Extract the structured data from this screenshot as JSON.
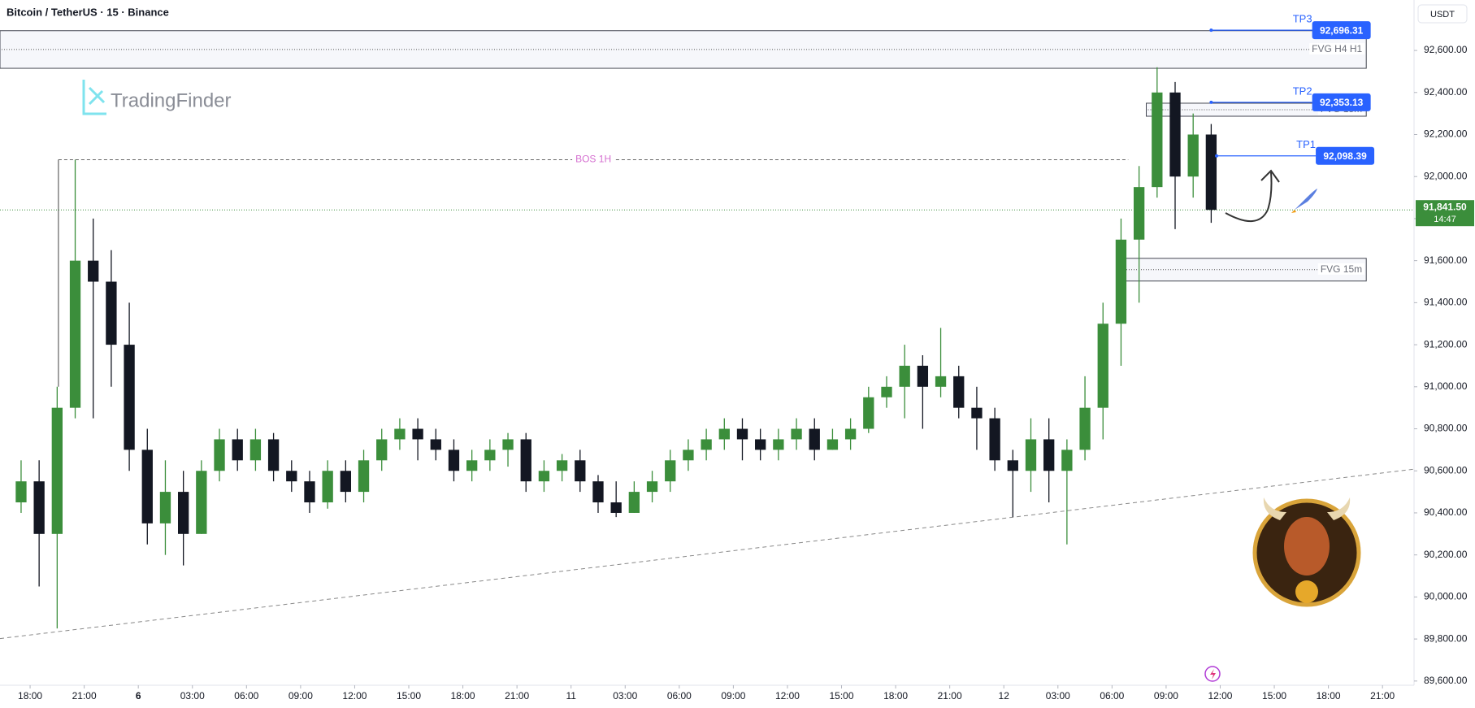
{
  "chart_data": {
    "type": "candlestick",
    "title": "Bitcoin / TetherUS · 15 · Binance",
    "currency": "USDT",
    "watermark": "TradingFinder",
    "up_color": "#3b8e3b",
    "down_color": "#131722",
    "x": [
      -0.5,
      0.5,
      1.5,
      2.5,
      3.5,
      4.5,
      5.5,
      6.5,
      7.5,
      8.5,
      9.5,
      10.5,
      11.5,
      12.5,
      13.5,
      14.5,
      15.5,
      16.5,
      17.5,
      18.5,
      19.5,
      20.5,
      21.5,
      22.5,
      23.5,
      24.5,
      25.5,
      26.5,
      27.5,
      28.5,
      29.5,
      30.5,
      31.5,
      32.5,
      33.5,
      34.5,
      35.5,
      36.5,
      37.5,
      38.5,
      39.5,
      40.5,
      41.5,
      42.5,
      43.5,
      44.5,
      45.5,
      46.5,
      47.5,
      48.5,
      49.5,
      50.5,
      51.5,
      52.5,
      53.5,
      54.5,
      55.5,
      56.5,
      57.5,
      58.5,
      59.5,
      60.5,
      61.5,
      62.5,
      63.5,
      64.5,
      65.5
    ],
    "open": [
      90450,
      90550,
      90300,
      90900,
      91600,
      91500,
      91200,
      90700,
      90350,
      90500,
      90300,
      90600,
      90750,
      90650,
      90750,
      90600,
      90550,
      90450,
      90600,
      90500,
      90650,
      90750,
      90800,
      90750,
      90700,
      90600,
      90650,
      90700,
      90750,
      90550,
      90600,
      90650,
      90550,
      90450,
      90400,
      90500,
      90550,
      90650,
      90700,
      90750,
      90800,
      90750,
      90700,
      90750,
      90800,
      90700,
      90750,
      90800,
      90950,
      91000,
      91100,
      91000,
      91050,
      90900,
      90850,
      90650,
      90600,
      90750,
      90600,
      90700,
      90900,
      91300,
      91700,
      91950,
      92400,
      92000,
      92200
    ],
    "high": [
      90650,
      90650,
      91000,
      92080,
      91800,
      91650,
      91400,
      90800,
      90650,
      90600,
      90650,
      90800,
      90800,
      90800,
      90780,
      90650,
      90600,
      90650,
      90650,
      90700,
      90800,
      90850,
      90850,
      90800,
      90750,
      90700,
      90750,
      90780,
      90780,
      90650,
      90680,
      90700,
      90580,
      90550,
      90550,
      90600,
      90700,
      90750,
      90800,
      90850,
      90850,
      90800,
      90800,
      90850,
      90850,
      90800,
      90850,
      91000,
      91050,
      91200,
      91150,
      91280,
      91100,
      91000,
      90900,
      90700,
      90850,
      90850,
      90750,
      91050,
      91400,
      91800,
      92050,
      92520,
      92450,
      92300,
      92250
    ],
    "low": [
      90400,
      90050,
      89850,
      90850,
      90850,
      91000,
      90600,
      90250,
      90200,
      90150,
      90300,
      90550,
      90600,
      90600,
      90550,
      90500,
      90400,
      90420,
      90450,
      90450,
      90600,
      90700,
      90650,
      90650,
      90550,
      90550,
      90600,
      90620,
      90500,
      90500,
      90550,
      90500,
      90400,
      90380,
      90400,
      90450,
      90500,
      90600,
      90650,
      90700,
      90650,
      90650,
      90650,
      90700,
      90650,
      90700,
      90700,
      90780,
      90900,
      90850,
      90800,
      90950,
      90850,
      90700,
      90600,
      90380,
      90500,
      90450,
      90250,
      90650,
      90750,
      91100,
      91400,
      91900,
      91750,
      91900,
      91780
    ],
    "close": [
      90550,
      90300,
      90900,
      91600,
      91500,
      91200,
      90700,
      90350,
      90500,
      90300,
      90600,
      90750,
      90650,
      90750,
      90600,
      90550,
      90450,
      90600,
      90500,
      90650,
      90750,
      90800,
      90750,
      90700,
      90600,
      90650,
      90700,
      90750,
      90550,
      90600,
      90650,
      90550,
      90450,
      90400,
      90500,
      90550,
      90650,
      90700,
      90750,
      90800,
      90750,
      90700,
      90750,
      90800,
      90700,
      90750,
      90800,
      90950,
      91000,
      91100,
      91000,
      91050,
      90900,
      90850,
      90650,
      90600,
      90750,
      90600,
      90700,
      90900,
      91300,
      91700,
      91950,
      92400,
      92000,
      92200,
      91841.5
    ],
    "xlim": [
      -1.67,
      76.75
    ],
    "xticks": [
      {
        "value": 0,
        "label": "18:00"
      },
      {
        "value": 3,
        "label": "21:00"
      },
      6,
      {
        "value": 9,
        "label": "03:00"
      },
      {
        "value": 12,
        "label": "06:00"
      },
      {
        "value": 15,
        "label": "09:00"
      },
      {
        "value": 18,
        "label": "12:00"
      },
      {
        "value": 21,
        "label": "15:00"
      },
      {
        "value": 24,
        "label": "18:00"
      },
      {
        "value": 27,
        "label": "21:00"
      },
      {
        "value": 30,
        "label": "11"
      },
      {
        "value": 33,
        "label": "03:00"
      },
      {
        "value": 36,
        "label": "06:00"
      },
      {
        "value": 39,
        "label": "09:00"
      },
      {
        "value": 42,
        "label": "12:00"
      },
      {
        "value": 45,
        "label": "15:00"
      },
      {
        "value": 48,
        "label": "18:00"
      },
      {
        "value": 51,
        "label": "21:00"
      },
      {
        "value": 54,
        "label": "12"
      },
      {
        "value": 57,
        "label": "03:00"
      },
      {
        "value": 60,
        "label": "06:00"
      },
      {
        "value": 63,
        "label": "09:00"
      },
      {
        "value": 66,
        "label": "12:00"
      },
      {
        "value": 69,
        "label": "15:00"
      },
      {
        "value": 72,
        "label": "18:00"
      },
      {
        "value": 75,
        "label": "21:00"
      }
    ],
    "ylim": [
      89580,
      92840
    ],
    "yticks": [
      {
        "value": 89600,
        "label": "89,600.00"
      },
      {
        "value": 89800,
        "label": "89,800.00"
      },
      {
        "value": 90000,
        "label": "90,000.00"
      },
      {
        "value": 90200,
        "label": "90,200.00"
      },
      {
        "value": 90400,
        "label": "90,400.00"
      },
      {
        "value": 90600,
        "label": "90,600.00"
      },
      {
        "value": 90800,
        "label": "90,800.00"
      },
      {
        "value": 91000,
        "label": "91,000.00"
      },
      {
        "value": 91200,
        "label": "91,200.00"
      },
      {
        "value": 91400,
        "label": "91,400.00"
      },
      {
        "value": 91600,
        "label": "91,600.00"
      },
      {
        "value": 91800,
        "label": "91,800.00"
      },
      {
        "value": 92000,
        "label": "92,000.00"
      },
      {
        "value": 92200,
        "label": "92,200.00"
      },
      {
        "value": 92400,
        "label": "92,400.00"
      },
      {
        "value": 92600,
        "label": "92,600.00"
      }
    ],
    "last_price": {
      "value": 91841.5,
      "label": "91,841.50"
    },
    "countdown": "14:47",
    "levels": [
      {
        "name": "TP3",
        "value": 92696.31,
        "label": "92,696.31",
        "x": [
          65.5,
          71.1
        ]
      },
      {
        "name": "TP2",
        "value": 92353.13,
        "label": "92,353.13",
        "x": [
          65.5,
          71.1
        ]
      },
      {
        "name": "TP1",
        "value": 92098.39,
        "label": "92,098.39",
        "x": [
          65.8,
          71.3
        ]
      }
    ],
    "zones": [
      {
        "name": "FVG H4 H1",
        "top": 92694,
        "bottom": 92515,
        "x": [
          -1.67,
          74.1
        ]
      },
      {
        "name": "FVG 15m",
        "top": 92349,
        "bottom": 92287,
        "x": [
          61.9,
          74.1
        ]
      },
      {
        "name": "FVG 15m",
        "top": 91611,
        "bottom": 91503,
        "x": [
          60.3,
          74.1
        ]
      }
    ],
    "bos": {
      "name": "BOS 1H",
      "value": 92080,
      "x": [
        1.57,
        60.9
      ]
    },
    "trendline": {
      "x": [
        -1.67,
        76.75
      ],
      "y": [
        89802,
        90608
      ]
    }
  }
}
